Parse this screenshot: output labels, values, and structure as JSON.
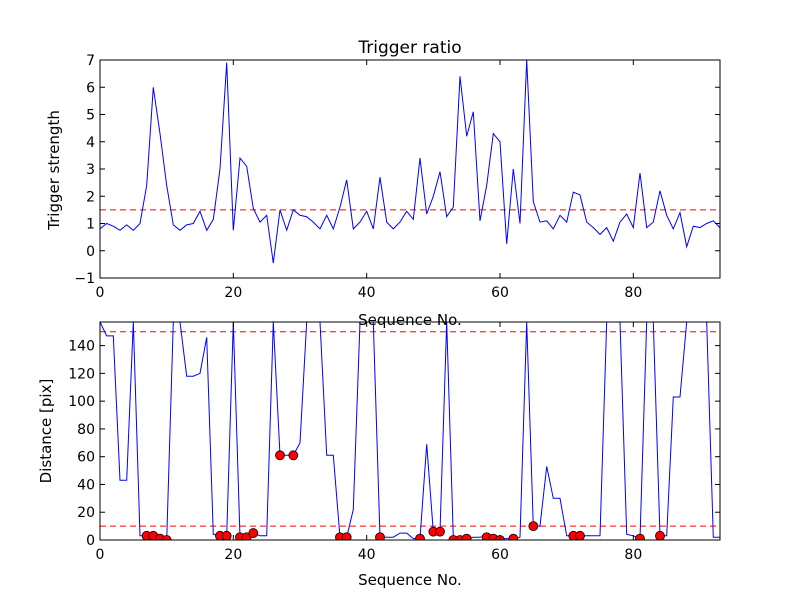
{
  "chart_data": [
    {
      "type": "line",
      "title": "Trigger ratio",
      "xlabel": "Sequence No.",
      "ylabel": "Trigger strength",
      "xlim": [
        0,
        93
      ],
      "ylim": [
        -1,
        7
      ],
      "xticks": [
        0,
        20,
        40,
        60,
        80
      ],
      "yticks": [
        -1,
        0,
        1,
        2,
        3,
        4,
        5,
        6,
        7
      ],
      "ytick_labels": [
        "−1",
        "0",
        "1",
        "2",
        "3",
        "4",
        "5",
        "6",
        "7"
      ],
      "grid": false,
      "series": [
        {
          "color": "#0000ff",
          "x": [
            0,
            1,
            2,
            3,
            4,
            5,
            6,
            7,
            8,
            9,
            10,
            11,
            12,
            13,
            14,
            15,
            16,
            17,
            18,
            19,
            20,
            21,
            22,
            23,
            24,
            25,
            26,
            27,
            28,
            29,
            30,
            31,
            32,
            33,
            34,
            35,
            36,
            37,
            38,
            39,
            40,
            41,
            42,
            43,
            44,
            45,
            46,
            47,
            48,
            49,
            50,
            51,
            52,
            53,
            54,
            55,
            56,
            57,
            58,
            59,
            60,
            61,
            62,
            63,
            64,
            65,
            66,
            67,
            68,
            69,
            70,
            71,
            72,
            73,
            74,
            75,
            76,
            77,
            78,
            79,
            80,
            81,
            82,
            83,
            84,
            85,
            86,
            87,
            88,
            89,
            90,
            91,
            92,
            93
          ],
          "y": [
            0.8,
            1.0,
            0.9,
            0.75,
            0.95,
            0.75,
            1.0,
            2.4,
            6.0,
            4.3,
            2.4,
            0.95,
            0.75,
            0.95,
            1.0,
            1.45,
            0.75,
            1.15,
            3.0,
            6.9,
            0.75,
            3.4,
            3.1,
            1.55,
            1.05,
            1.3,
            -0.45,
            1.5,
            0.75,
            1.5,
            1.3,
            1.25,
            1.05,
            0.8,
            1.3,
            0.8,
            1.6,
            2.6,
            0.8,
            1.05,
            1.45,
            0.8,
            2.7,
            1.05,
            0.8,
            1.05,
            1.45,
            1.15,
            3.4,
            1.35,
            2.0,
            2.9,
            1.25,
            1.6,
            6.4,
            4.2,
            5.1,
            1.1,
            2.4,
            4.3,
            4.0,
            0.25,
            3.0,
            1.0,
            7.0,
            1.8,
            1.05,
            1.1,
            0.8,
            1.3,
            1.05,
            2.15,
            2.05,
            1.05,
            0.85,
            0.6,
            0.85,
            0.35,
            1.05,
            1.35,
            0.85,
            2.85,
            0.85,
            1.05,
            2.2,
            1.3,
            0.8,
            1.4,
            0.15,
            0.9,
            0.85,
            1.0,
            1.1,
            0.85
          ]
        }
      ],
      "hlines": [
        {
          "y": 1.5,
          "color": "#ff0000",
          "style": "dashed"
        }
      ]
    },
    {
      "type": "line",
      "title": "",
      "xlabel": "Sequence No.",
      "ylabel": "Distance [pix]",
      "xlim": [
        0,
        93
      ],
      "ylim": [
        0,
        157
      ],
      "xticks": [
        0,
        20,
        40,
        60,
        80
      ],
      "yticks": [
        0,
        20,
        40,
        60,
        80,
        100,
        120,
        140
      ],
      "ytick_labels": [
        "0",
        "20",
        "40",
        "60",
        "80",
        "100",
        "120",
        "140"
      ],
      "grid": false,
      "series": [
        {
          "color": "#0000ff",
          "x": [
            0,
            1,
            2,
            3,
            4,
            5,
            6,
            7,
            8,
            9,
            10,
            11,
            12,
            13,
            14,
            15,
            16,
            17,
            18,
            19,
            20,
            21,
            22,
            23,
            24,
            25,
            26,
            27,
            28,
            29,
            30,
            31,
            32,
            33,
            34,
            35,
            36,
            37,
            38,
            39,
            40,
            41,
            42,
            43,
            44,
            45,
            46,
            47,
            48,
            49,
            50,
            51,
            52,
            53,
            54,
            55,
            56,
            57,
            58,
            59,
            60,
            61,
            62,
            63,
            64,
            65,
            66,
            67,
            68,
            69,
            70,
            71,
            72,
            73,
            74,
            75,
            76,
            77,
            78,
            79,
            80,
            81,
            82,
            83,
            84,
            85,
            86,
            87,
            88,
            89,
            90,
            91,
            92,
            93
          ],
          "y": [
            157,
            147,
            147,
            43,
            43,
            157,
            3,
            3,
            3,
            1,
            0,
            157,
            157,
            118,
            118,
            120,
            146,
            4,
            3,
            3,
            157,
            2,
            2,
            5,
            3,
            3,
            157,
            61,
            61,
            61,
            70,
            157,
            157,
            157,
            61,
            61,
            2,
            2,
            22,
            157,
            157,
            157,
            2,
            2,
            2,
            5,
            5,
            1,
            1,
            69,
            6,
            6,
            157,
            2,
            2,
            1,
            2,
            2,
            3,
            1,
            1,
            1,
            1,
            2,
            157,
            10,
            10,
            53,
            30,
            30,
            3,
            3,
            3,
            3,
            3,
            3,
            157,
            157,
            157,
            4,
            3,
            1,
            157,
            157,
            3,
            3,
            103,
            103,
            157,
            157,
            157,
            157,
            2,
            2
          ]
        }
      ],
      "markers": {
        "color": "#ff0000",
        "x": [
          7,
          8,
          9,
          10,
          18,
          19,
          21,
          22,
          23,
          27,
          29,
          36,
          37,
          42,
          48,
          50,
          51,
          53,
          54,
          55,
          58,
          59,
          60,
          62,
          65,
          71,
          72,
          81,
          84
        ],
        "y": [
          3,
          3,
          1,
          0,
          3,
          3,
          2,
          2,
          5,
          61,
          61,
          2,
          2,
          2,
          1,
          6,
          6,
          0,
          0,
          1,
          2,
          1,
          0,
          1,
          10,
          3,
          3,
          1,
          3
        ]
      },
      "hlines": [
        {
          "y": 150,
          "color": "#ff0000",
          "style": "dashed"
        },
        {
          "y": 10,
          "color": "#ff0000",
          "style": "dashed"
        }
      ]
    }
  ]
}
